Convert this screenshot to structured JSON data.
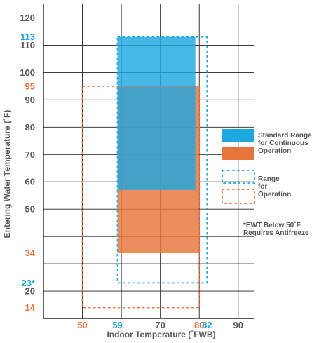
{
  "chart_data": {
    "type": "range-chart",
    "xlabel": "Indoor Temperature (˚FWB)",
    "ylabel": "Entering Water Temperature (˚F)",
    "xlim": [
      40,
      94
    ],
    "ylim": [
      10,
      125
    ],
    "x_ticks": [
      {
        "value": 50,
        "label": "50",
        "color": "#e8743b"
      },
      {
        "value": 59,
        "label": "59",
        "color": "#1ea7e0"
      },
      {
        "value": 70,
        "label": "70",
        "color": "#5a5a5a"
      },
      {
        "value": 80,
        "label": "80",
        "color": "#e8743b"
      },
      {
        "value": 82,
        "label": "82",
        "color": "#1ea7e0"
      },
      {
        "value": 90,
        "label": "90",
        "color": "#5a5a5a"
      }
    ],
    "y_ticks": [
      {
        "value": 14,
        "label": "14",
        "color": "#e8743b"
      },
      {
        "value": 20,
        "label": "20",
        "color": "#5a5a5a"
      },
      {
        "value": 23,
        "label": "23*",
        "color": "#1ea7e0"
      },
      {
        "value": 34,
        "label": "34",
        "color": "#e8743b"
      },
      {
        "value": 50,
        "label": "50",
        "color": "#5a5a5a"
      },
      {
        "value": 60,
        "label": "60",
        "color": "#5a5a5a"
      },
      {
        "value": 70,
        "label": "70",
        "color": "#5a5a5a"
      },
      {
        "value": 80,
        "label": "80",
        "color": "#5a5a5a"
      },
      {
        "value": 90,
        "label": "90",
        "color": "#5a5a5a"
      },
      {
        "value": 95,
        "label": "95",
        "color": "#e8743b"
      },
      {
        "value": 100,
        "label": "100",
        "color": "#5a5a5a"
      },
      {
        "value": 110,
        "label": "110",
        "color": "#5a5a5a"
      },
      {
        "value": 113,
        "label": "113",
        "color": "#1ea7e0"
      },
      {
        "value": 120,
        "label": "120",
        "color": "#5a5a5a"
      }
    ],
    "gridlines_x": [
      50,
      60,
      70,
      80,
      90
    ],
    "gridlines_y": [
      20,
      30,
      40,
      50,
      60,
      70,
      80,
      90,
      100,
      110,
      120
    ],
    "series": [
      {
        "name": "Standard Range for Continuous Operation",
        "kind": "filled",
        "color": "#e8743b",
        "x_range": [
          59,
          80
        ],
        "y_range": [
          34,
          95
        ]
      },
      {
        "name": "Standard Range for Continuous Operation",
        "kind": "filled",
        "color": "#1ea7e0",
        "x_range": [
          59,
          79
        ],
        "y_range": [
          57,
          113
        ]
      },
      {
        "name": "Range for Operation",
        "kind": "dashed",
        "color": "#1ea7e0",
        "x_range": [
          59,
          82
        ],
        "y_range": [
          23,
          113
        ]
      },
      {
        "name": "Range for Operation",
        "kind": "dashed",
        "color": "#e8743b",
        "x_range": [
          50,
          80
        ],
        "y_range": [
          14,
          95
        ]
      }
    ],
    "legend": {
      "position": "right",
      "items": [
        {
          "swatch": "solid",
          "colors": [
            "#1ea7e0",
            "#e8743b"
          ],
          "lines": [
            "Standard Range",
            "for Continuous",
            "Operation"
          ]
        },
        {
          "swatch": "dashed",
          "colors": [
            "#1ea7e0",
            "#e8743b"
          ],
          "lines": [
            "Range",
            "for",
            "Operation"
          ]
        }
      ]
    },
    "annotation": [
      "*EWT Below 50˚F",
      "Requires Antifreeze"
    ],
    "colors": {
      "blue": "#1ea7e0",
      "orange": "#e8743b",
      "grid": "#222222",
      "text": "#5a5a5a"
    }
  }
}
